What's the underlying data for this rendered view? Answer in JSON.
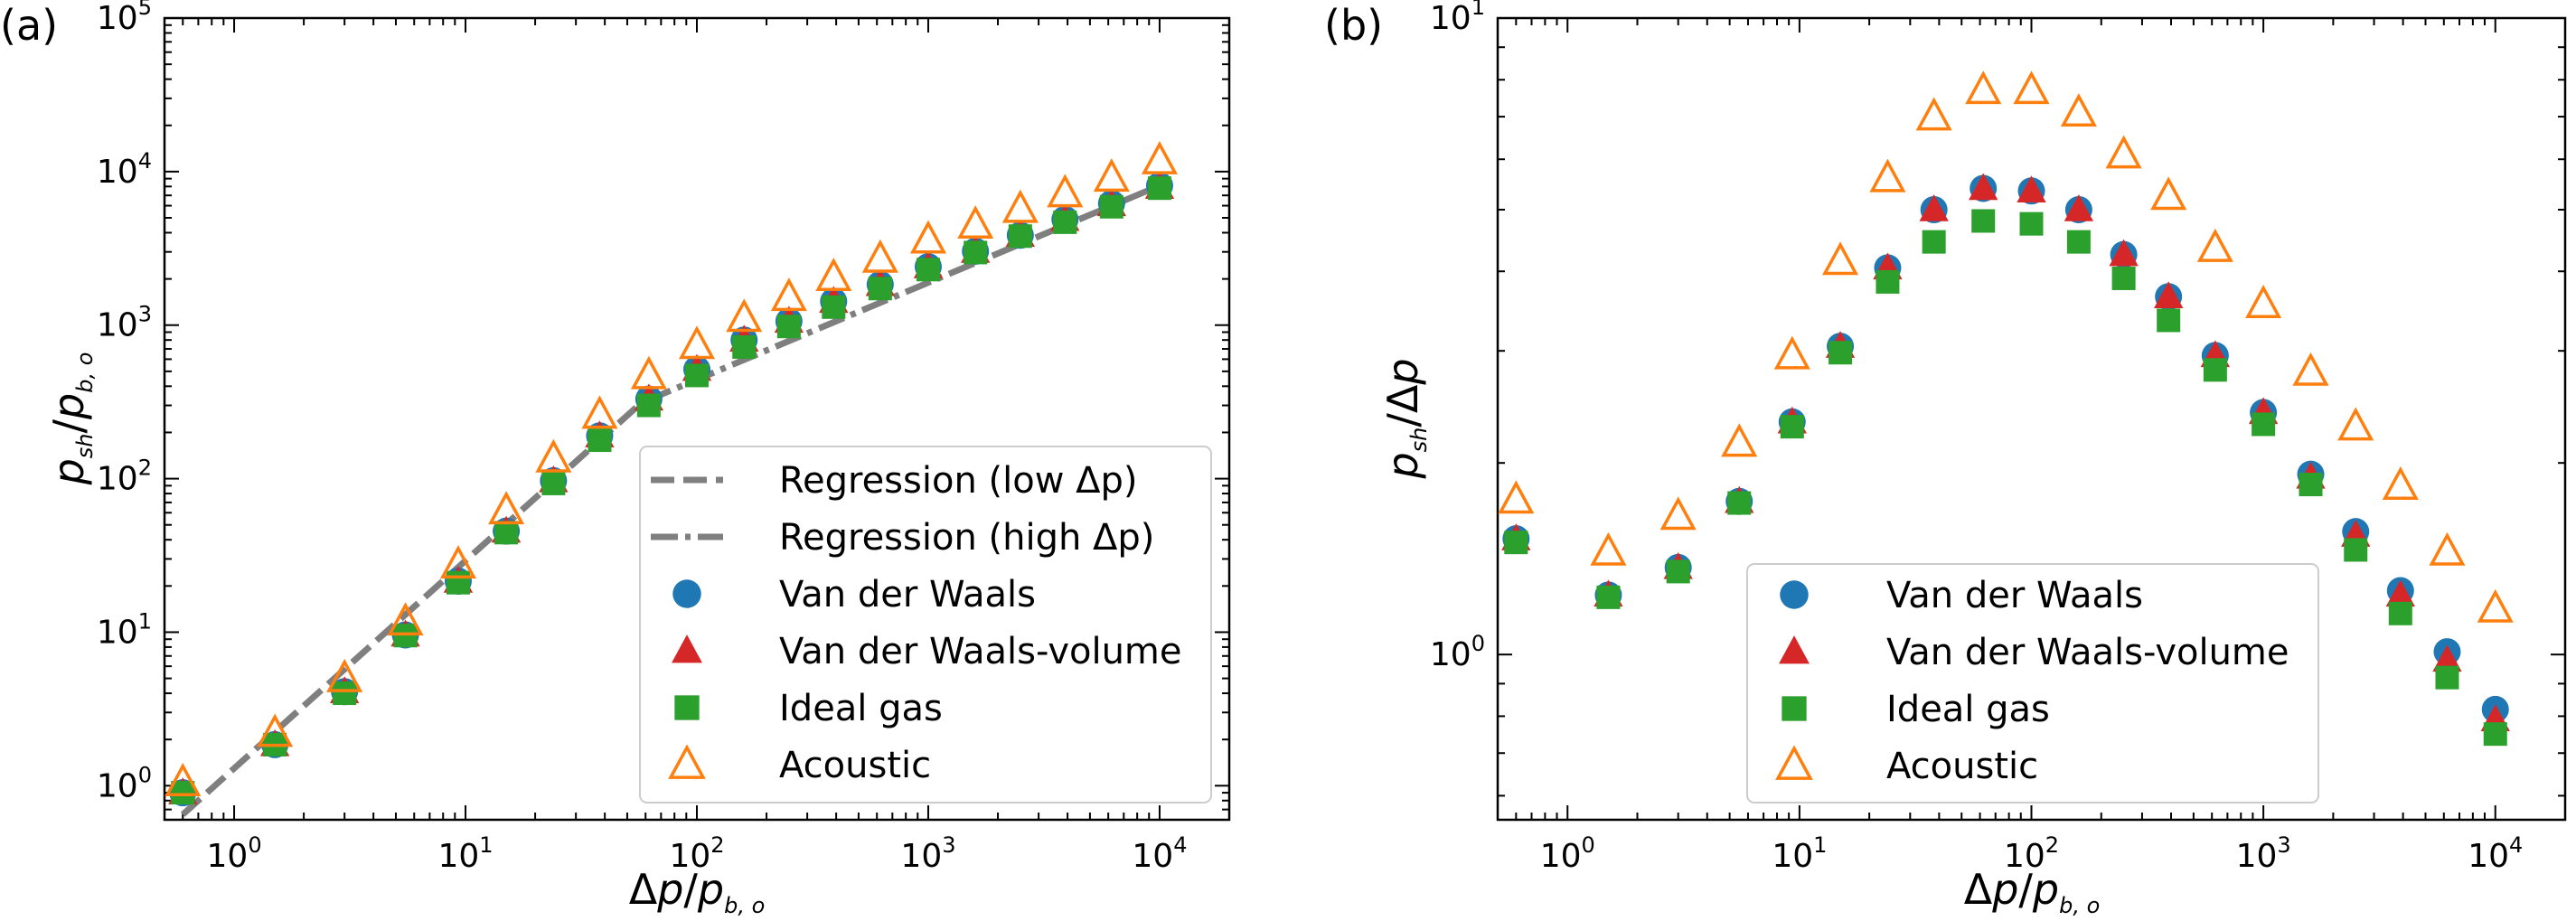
{
  "figure": {
    "panels": [
      "(a)",
      "(b)"
    ]
  },
  "colors": {
    "vdw": "#1f77b4",
    "vdw_volume": "#d62728",
    "ideal": "#2ca02c",
    "acoustic": "#ff7f0e",
    "regression": "#7f7f7f"
  },
  "legend_a": [
    {
      "label": "Regression (low Δp)",
      "marker": "dashed-line"
    },
    {
      "label": "Regression (high Δp)",
      "marker": "dashdot-line"
    },
    {
      "label": "Van der Waals",
      "marker": "circle"
    },
    {
      "label": "Van der Waals-volume",
      "marker": "triangle"
    },
    {
      "label": "Ideal gas",
      "marker": "square"
    },
    {
      "label": "Acoustic",
      "marker": "open-triangle"
    }
  ],
  "legend_b": [
    {
      "label": "Van der Waals",
      "marker": "circle"
    },
    {
      "label": "Van der Waals-volume",
      "marker": "triangle"
    },
    {
      "label": "Ideal gas",
      "marker": "square"
    },
    {
      "label": "Acoustic",
      "marker": "open-triangle"
    }
  ],
  "chart_data": [
    {
      "panel": "(a)",
      "type": "scatter",
      "xscale": "log",
      "yscale": "log",
      "xlabel": "Δp/p_b,o",
      "ylabel": "p_sh/p_b,o",
      "xlim": [
        0.5,
        20000
      ],
      "ylim": [
        0.6,
        100000
      ],
      "x_ticks": [
        1,
        10,
        100,
        1000,
        10000
      ],
      "y_ticks": [
        1,
        10,
        100,
        1000,
        10000,
        100000
      ],
      "x": [
        0.6,
        1.5,
        3,
        5.5,
        9.3,
        15,
        24,
        38,
        62,
        100,
        160,
        250,
        390,
        620,
        1000,
        1600,
        2500,
        3900,
        6200,
        10000
      ],
      "series": [
        {
          "name": "Van der Waals",
          "values": [
            0.9,
            1.85,
            4.1,
            9.6,
            21.5,
            45.5,
            97,
            190,
            330,
            515,
            800,
            1060,
            1430,
            1840,
            2400,
            3030,
            3850,
            4880,
            6200,
            8100
          ]
        },
        {
          "name": "Van der Waals-volume",
          "values": [
            0.9,
            1.85,
            4.1,
            9.6,
            21.5,
            45.5,
            97,
            190,
            330,
            515,
            800,
            1060,
            1430,
            1840,
            2400,
            3030,
            3850,
            4880,
            6100,
            7900
          ]
        },
        {
          "name": "Ideal gas",
          "values": [
            0.9,
            1.85,
            4.0,
            9.5,
            21.0,
            44.5,
            93,
            178,
            300,
            470,
            720,
            980,
            1310,
            1730,
            2300,
            2970,
            3800,
            4680,
            5900,
            7800
          ]
        },
        {
          "name": "Acoustic",
          "values": [
            1.05,
            2.2,
            5.0,
            11.7,
            27.5,
            62,
            135,
            260,
            470,
            740,
            1110,
            1520,
            2050,
            2700,
            3600,
            4500,
            5700,
            7200,
            9100,
            11800
          ]
        }
      ],
      "regression": [
        {
          "name": "Regression (low Δp)",
          "style": "dashed",
          "x": [
            0.6,
            60
          ],
          "y": [
            0.65,
            330
          ]
        },
        {
          "name": "Regression (high Δp)",
          "style": "dashdot",
          "x": [
            60,
            10000
          ],
          "y": [
            320,
            8100
          ]
        }
      ]
    },
    {
      "panel": "(b)",
      "type": "scatter",
      "xscale": "log",
      "yscale": "log",
      "xlabel": "Δp/p_b,o",
      "ylabel": "p_sh/Δp",
      "xlim": [
        0.5,
        20000
      ],
      "ylim": [
        0.55,
        10
      ],
      "x_ticks": [
        1,
        10,
        100,
        1000,
        10000
      ],
      "y_ticks": [
        1,
        10
      ],
      "x": [
        0.6,
        1.5,
        3,
        5.5,
        9.3,
        15,
        24,
        38,
        62,
        100,
        160,
        250,
        390,
        620,
        1000,
        1600,
        2500,
        3900,
        6200,
        10000
      ],
      "series": [
        {
          "name": "Van der Waals",
          "values": [
            1.52,
            1.24,
            1.37,
            1.74,
            2.32,
            3.05,
            4.05,
            5.0,
            5.4,
            5.35,
            5.0,
            4.25,
            3.65,
            2.95,
            2.4,
            1.92,
            1.56,
            1.26,
            1.01,
            0.82
          ]
        },
        {
          "name": "Van der Waals-volume",
          "values": [
            1.52,
            1.24,
            1.37,
            1.74,
            2.32,
            3.05,
            4.05,
            5.0,
            5.4,
            5.35,
            5.0,
            4.25,
            3.65,
            2.95,
            2.4,
            1.9,
            1.54,
            1.24,
            0.98,
            0.79
          ]
        },
        {
          "name": "Ideal gas",
          "values": [
            1.5,
            1.23,
            1.35,
            1.73,
            2.28,
            2.98,
            3.85,
            4.45,
            4.8,
            4.75,
            4.45,
            3.9,
            3.35,
            2.8,
            2.3,
            1.85,
            1.46,
            1.16,
            0.92,
            0.75
          ]
        },
        {
          "name": "Acoustic",
          "values": [
            1.75,
            1.45,
            1.65,
            2.15,
            2.95,
            4.15,
            5.6,
            7.0,
            7.7,
            7.7,
            7.1,
            6.1,
            5.25,
            4.35,
            3.55,
            2.78,
            2.28,
            1.84,
            1.45,
            1.18
          ]
        }
      ]
    }
  ]
}
